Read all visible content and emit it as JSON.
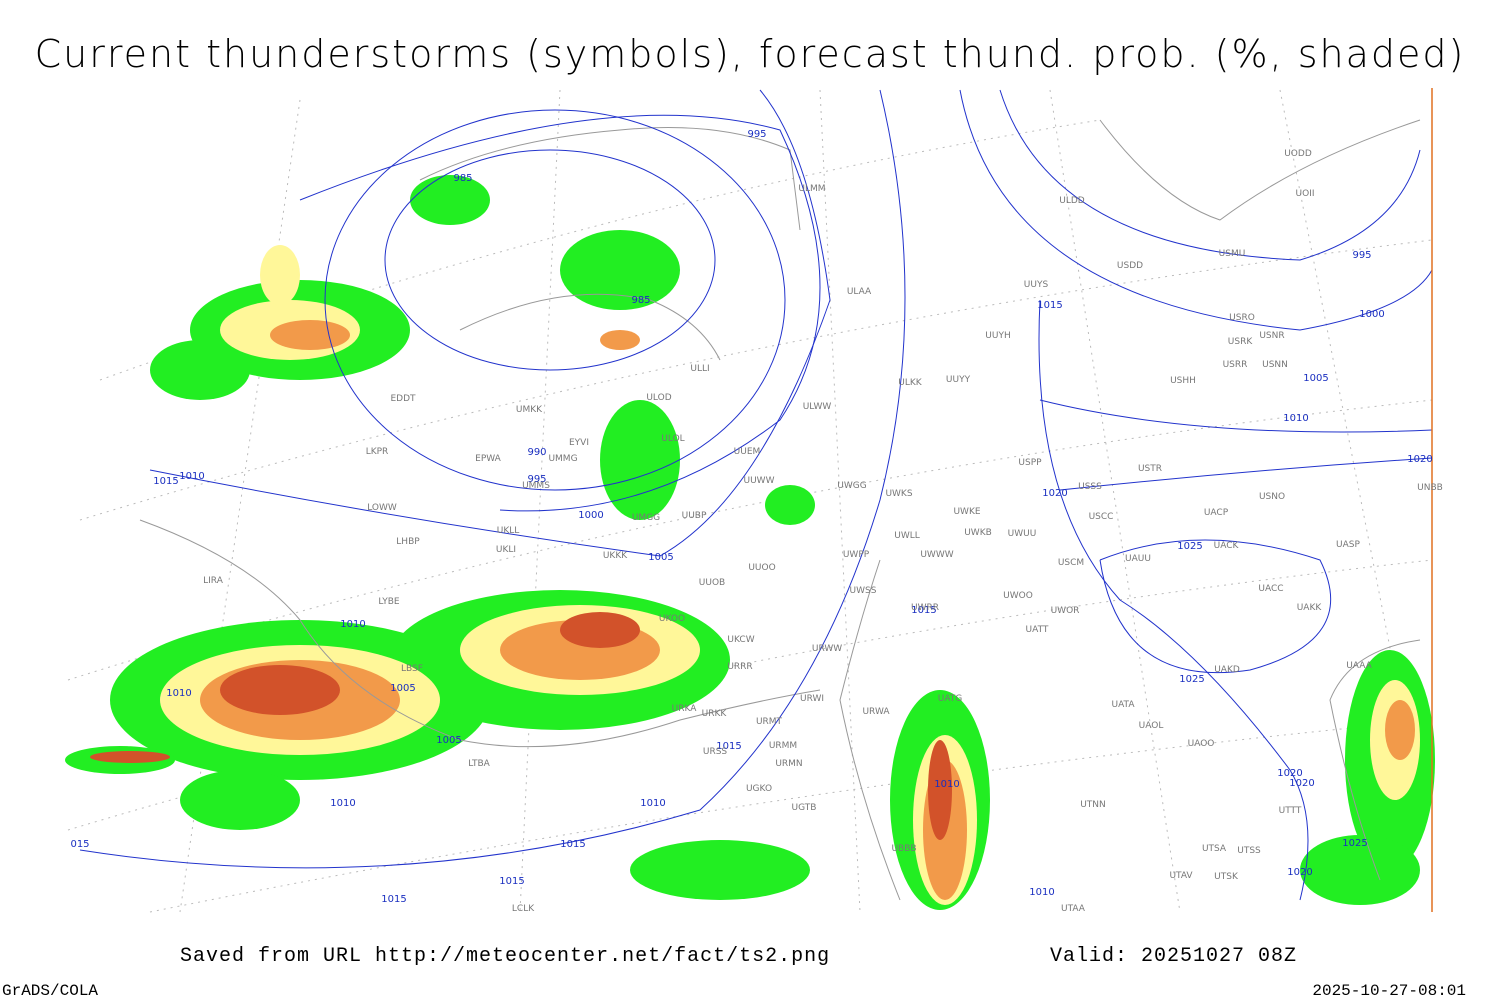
{
  "header": {
    "title": "Current thunderstorms (symbols), forecast thund. prob. (%, shaded)"
  },
  "map": {
    "isobar_labels": [
      "985",
      "995",
      "985",
      "990",
      "995",
      "1000",
      "1005",
      "1010",
      "1015",
      "1010",
      "1010",
      "1005",
      "1005",
      "1010",
      "1010",
      "1015",
      "1015",
      "1015",
      "1015",
      "015",
      "1015",
      "1010",
      "1010",
      "1015",
      "1020",
      "1025",
      "1025",
      "1020",
      "1020",
      "1025",
      "1020",
      "1020",
      "995",
      "1000",
      "1005",
      "1010"
    ],
    "station_labels": [
      "ULMM",
      "ULDD",
      "UODD",
      "UOII",
      "USDD",
      "USMU",
      "ULAA",
      "UUYS",
      "USRO",
      "USNR",
      "USRK",
      "UUYH",
      "USRR",
      "USNN",
      "USHH",
      "UUYY",
      "ULLI",
      "ULKK",
      "ULOD",
      "ULWW",
      "UMKK",
      "EDDT",
      "EYVI",
      "ULOL",
      "EPWA",
      "UMMG",
      "LKPR",
      "UUEM",
      "USPP",
      "USTR",
      "UMMS",
      "UUWW",
      "UWGG",
      "UWKS",
      "USSS",
      "USNO",
      "UNBB",
      "LOWW",
      "UKLL",
      "UMGG",
      "UUBP",
      "UWKE",
      "USCC",
      "UACP",
      "LHBP",
      "UKLI",
      "UWLL",
      "UWKB",
      "UWUU",
      "UACK",
      "UASP",
      "UKKK",
      "UWPP",
      "UWWW",
      "USCM",
      "UAUU",
      "LIRA",
      "UUOO",
      "UUOB",
      "UWSS",
      "UACC",
      "LYBE",
      "UWOO",
      "UWOR",
      "UAKK",
      "UKOO",
      "UWRR",
      "URWW",
      "UKCW",
      "UATT",
      "URRR",
      "LBSF",
      "UAKD",
      "UAAA",
      "URWI",
      "UATG",
      "UATA",
      "URKA",
      "URKK",
      "URMT",
      "URWA",
      "UAOL",
      "URMM",
      "UAOO",
      "URSS",
      "LTBA",
      "URMN",
      "UGKO",
      "UGTB",
      "UTNN",
      "UTTT",
      "UBBB",
      "UTSA",
      "UTSS",
      "UTAV",
      "UTSK",
      "LCLK",
      "UTAA"
    ]
  },
  "footer": {
    "saved": "Saved from URL http://meteocenter.net/fact/ts2.png",
    "valid": "Valid: 20251027 08Z",
    "software": "GrADS/COLA",
    "timestamp": "2025-10-27-08:01"
  }
}
